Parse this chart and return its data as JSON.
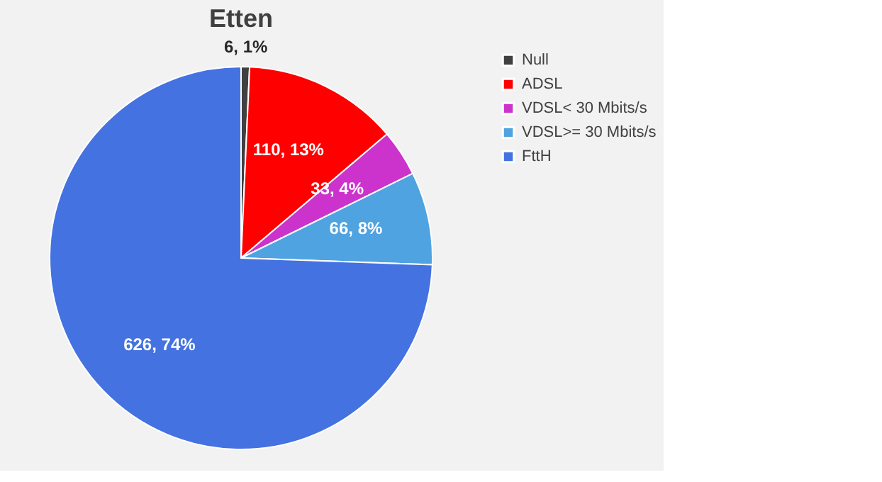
{
  "chart_data": {
    "type": "pie",
    "title": "Etten",
    "categories": [
      "Null",
      "ADSL",
      "VDSL< 30 Mbits/s",
      "VDSL>= 30 Mbits/s",
      "FttH"
    ],
    "values": [
      6,
      110,
      33,
      66,
      626
    ],
    "value_labels": [
      "6, 1%",
      "110, 13%",
      "33, 4%",
      "66, 8%",
      "626, 74%"
    ],
    "colors": [
      "#404040",
      "#ff0000",
      "#cc33cc",
      "#4fa3e0",
      "#4472e0"
    ],
    "legend": "right"
  }
}
